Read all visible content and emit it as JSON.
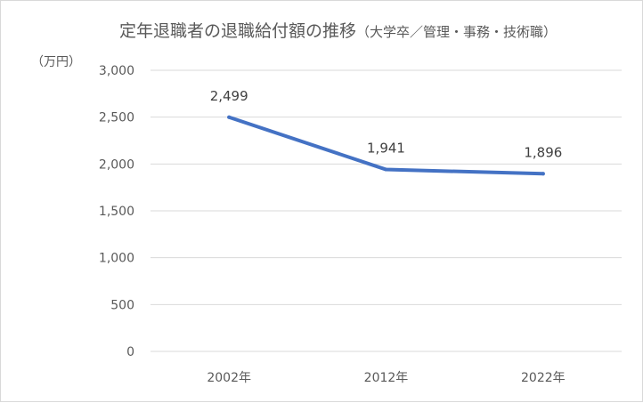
{
  "chart_data": {
    "type": "line",
    "title": "定年退職者の退職給付額の推移",
    "title_note": "（大学卒／管理・事務・技術職）",
    "ylabel": "（万円）",
    "xlabel": "",
    "categories": [
      "2002年",
      "2012年",
      "2022年"
    ],
    "series": [
      {
        "values": [
          2499,
          1941,
          1896
        ],
        "data_labels": [
          "2,499",
          "1,941",
          "1,896"
        ]
      }
    ],
    "ylim": [
      0,
      3000
    ],
    "yticks": [
      0,
      500,
      1000,
      1500,
      2000,
      2500,
      3000
    ],
    "ytick_labels": [
      "0",
      "500",
      "1,000",
      "1,500",
      "2,000",
      "2,500",
      "3,000"
    ],
    "grid": true,
    "legend": "none",
    "colors": {
      "line": "#4472c4",
      "grid": "#d9d9d9",
      "text": "#595959"
    }
  }
}
